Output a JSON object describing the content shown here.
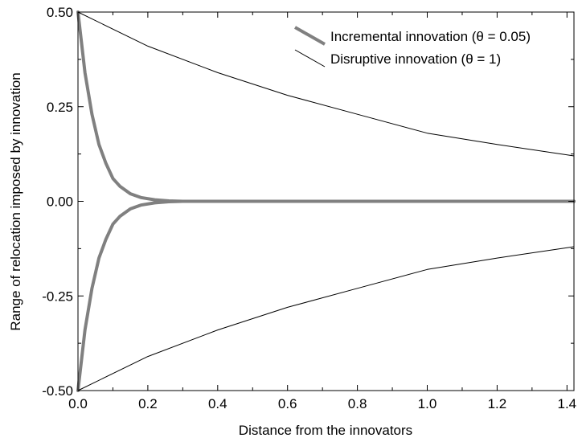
{
  "chart_data": {
    "type": "line",
    "xlabel": "Distance from the innovators",
    "ylabel": "Range of relocation imposed by innovation",
    "xlim": [
      0,
      1.42
    ],
    "ylim": [
      -0.5,
      0.5
    ],
    "x_ticks": [
      "0.0",
      "0.2",
      "0.4",
      "0.6",
      "0.8",
      "1.0",
      "1.2",
      "1.4"
    ],
    "y_ticks": [
      "0.50",
      "0.25",
      "0.00",
      "-0.25",
      "-0.50"
    ],
    "grid": false,
    "legend_position": "top-right",
    "series": [
      {
        "name": "Incremental innovation (θ = 0.05)",
        "color": "#808080",
        "style": "thick",
        "x": [
          0,
          0.02,
          0.04,
          0.06,
          0.08,
          0.1,
          0.12,
          0.15,
          0.18,
          0.22,
          0.26,
          0.3,
          0.44,
          1.42
        ],
        "upper": [
          0.5,
          0.34,
          0.23,
          0.15,
          0.1,
          0.06,
          0.04,
          0.02,
          0.01,
          0.004,
          0.001,
          0.0,
          0.0,
          0.0
        ],
        "lower": [
          -0.5,
          -0.34,
          -0.23,
          -0.15,
          -0.1,
          -0.06,
          -0.04,
          -0.02,
          -0.01,
          -0.004,
          -0.001,
          0.0,
          0.0,
          0.0
        ]
      },
      {
        "name": "Disruptive innovation (θ = 1)",
        "color": "#000000",
        "style": "thin",
        "x": [
          0,
          0.2,
          0.4,
          0.6,
          0.8,
          1.0,
          1.2,
          1.42
        ],
        "upper": [
          0.5,
          0.41,
          0.34,
          0.28,
          0.23,
          0.18,
          0.15,
          0.12
        ],
        "lower": [
          -0.5,
          -0.41,
          -0.34,
          -0.28,
          -0.23,
          -0.18,
          -0.15,
          -0.12
        ]
      }
    ]
  }
}
